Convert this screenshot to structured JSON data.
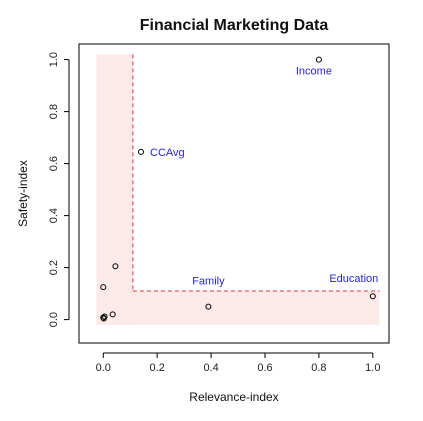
{
  "chart_data": {
    "type": "scatter",
    "title": "Financial Marketing Data",
    "xlabel": "Relevance-index",
    "ylabel": "Safety-index",
    "xlim": [
      -0.09,
      1.06
    ],
    "ylim": [
      -0.09,
      1.06
    ],
    "x_ticks": [
      "0.0",
      "0.2",
      "0.4",
      "0.6",
      "0.8",
      "1.0"
    ],
    "y_ticks": [
      "0.0",
      "0.2",
      "0.4",
      "0.6",
      "0.8",
      "1.0"
    ],
    "grid": false,
    "label_color": "#2323e6",
    "threshold_color": "#e8323c",
    "region_fill": "#fbeae7",
    "thresholds": {
      "x": 0.11,
      "y": 0.11
    },
    "points": [
      {
        "x": 0.8,
        "y": 1.0,
        "label": "Income"
      },
      {
        "x": 0.14,
        "y": 0.645,
        "label": "CCAvg"
      },
      {
        "x": 0.39,
        "y": 0.05,
        "label": "Family"
      },
      {
        "x": 1.0,
        "y": 0.09,
        "label": "Education"
      },
      {
        "x": 0.045,
        "y": 0.205,
        "label": ""
      },
      {
        "x": 0.0,
        "y": 0.125,
        "label": ""
      },
      {
        "x": 0.035,
        "y": 0.02,
        "label": ""
      },
      {
        "x": 0.005,
        "y": 0.012,
        "label": ""
      },
      {
        "x": 0.0,
        "y": 0.008,
        "label": ""
      },
      {
        "x": 0.002,
        "y": 0.004,
        "label": ""
      }
    ]
  }
}
